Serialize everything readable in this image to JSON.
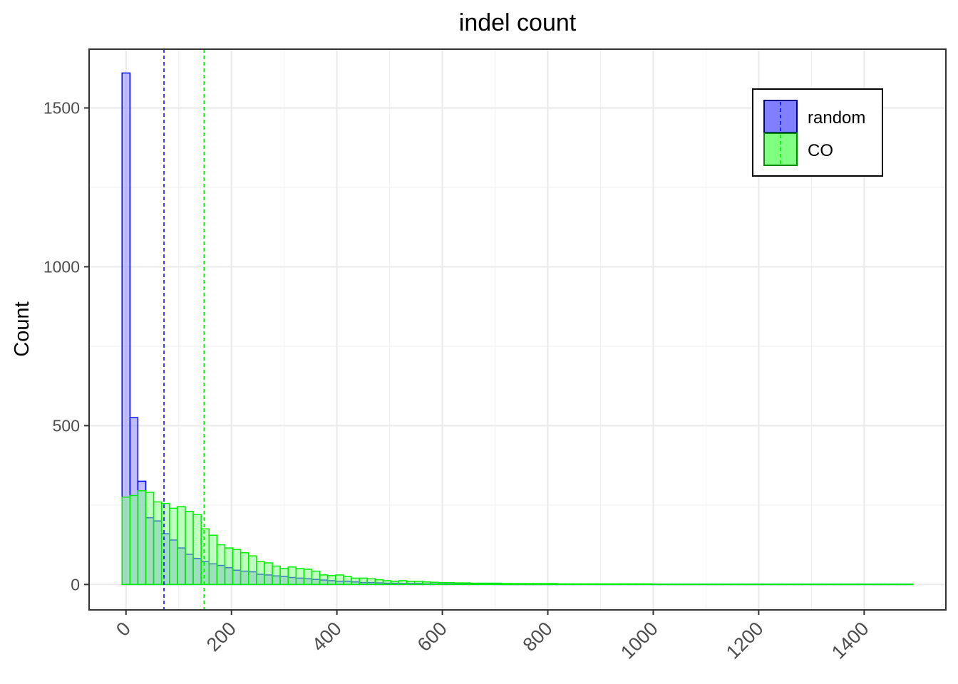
{
  "chart_data": {
    "type": "histogram",
    "title": "indel count",
    "xlabel": "",
    "ylabel": "Count",
    "xlim": [
      -70,
      1555
    ],
    "ylim": [
      -80,
      1685
    ],
    "x_ticks": [
      0,
      200,
      400,
      600,
      800,
      1000,
      1200,
      1400
    ],
    "x_tick_labels": [
      "0",
      "200",
      "400",
      "600",
      "800",
      "1000",
      "1200",
      "1400"
    ],
    "y_ticks": [
      0,
      500,
      1000,
      1500
    ],
    "y_tick_labels": [
      "0",
      "500",
      "1000",
      "1500"
    ],
    "grid": true,
    "legend_position": "top-right",
    "bin_width": 15,
    "bin_start": -7.5,
    "colors": {
      "random_fill": "#7f7fff",
      "random_stroke": "#0000ff",
      "co_fill": "#80ff80",
      "co_stroke": "#00ee00",
      "overlap_fill": "#2ecf6b"
    },
    "series": [
      {
        "name": "random",
        "counts": [
          1610,
          525,
          325,
          210,
          200,
          160,
          140,
          115,
          95,
          82,
          72,
          65,
          60,
          53,
          45,
          42,
          40,
          32,
          30,
          27,
          25,
          22,
          20,
          18,
          16,
          14,
          12,
          10,
          10,
          8,
          6,
          6,
          5,
          4,
          4,
          3,
          3,
          3,
          2,
          2,
          2,
          2,
          2,
          2,
          2,
          2,
          2,
          1,
          1,
          1,
          1,
          1,
          1,
          1,
          1,
          1,
          1,
          1,
          1,
          1,
          1,
          1,
          1,
          1,
          1,
          1,
          1,
          1,
          1,
          1,
          1,
          1,
          1,
          1,
          1,
          1,
          1,
          1,
          1,
          1,
          1,
          1,
          1,
          1,
          1,
          1,
          1,
          1,
          1,
          1,
          1,
          1,
          1,
          1,
          1,
          1,
          1,
          1,
          1,
          1
        ],
        "mean": 72
      },
      {
        "name": "CO",
        "counts": [
          275,
          280,
          295,
          290,
          260,
          255,
          240,
          245,
          230,
          220,
          175,
          155,
          125,
          115,
          110,
          100,
          90,
          72,
          68,
          58,
          50,
          55,
          50,
          48,
          42,
          30,
          28,
          30,
          25,
          20,
          20,
          18,
          15,
          12,
          10,
          12,
          10,
          10,
          8,
          7,
          6,
          6,
          5,
          5,
          4,
          4,
          4,
          4,
          3,
          3,
          3,
          3,
          3,
          3,
          3,
          2,
          2,
          2,
          2,
          2,
          2,
          2,
          2,
          2,
          2,
          2,
          2,
          1,
          1,
          1,
          1,
          1,
          1,
          1,
          1,
          1,
          1,
          1,
          1,
          1,
          1,
          1,
          1,
          1,
          1,
          1,
          1,
          1,
          1,
          1,
          1,
          1,
          1,
          1,
          1,
          1,
          1,
          1,
          1,
          1
        ],
        "mean": 148
      }
    ]
  }
}
